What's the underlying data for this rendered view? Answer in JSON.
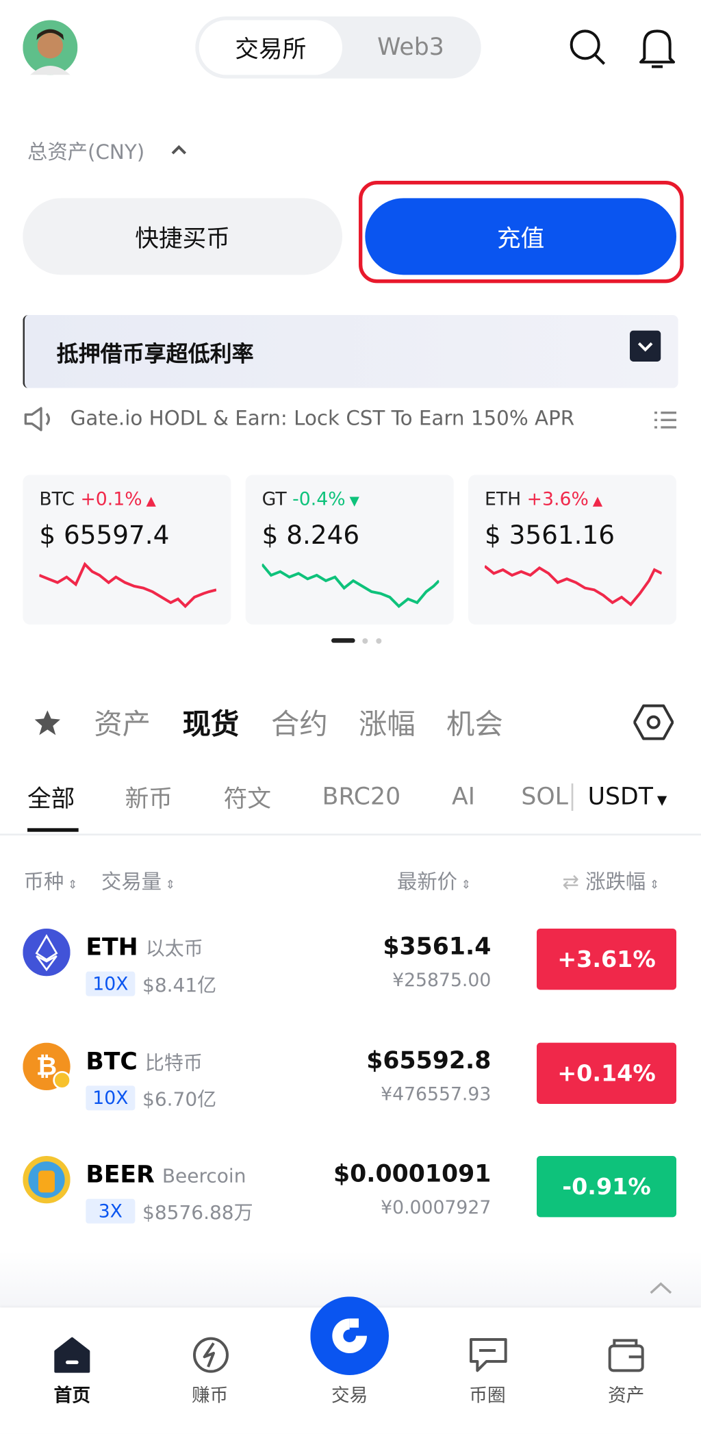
{
  "header": {
    "tabs": [
      "交易所",
      "Web3"
    ]
  },
  "total_assets_label": "总资产(CNY)",
  "buttons": {
    "quick_buy": "快捷买币",
    "deposit": "充值"
  },
  "banner": "抵押借币享超低利率",
  "announcement": "Gate.io HODL & Earn: Lock CST To Earn 150% APR",
  "tickers": [
    {
      "symbol": "BTC",
      "change": "+0.1%",
      "price": "$ 65597.4"
    },
    {
      "symbol": "GT",
      "change": "-0.4%",
      "price": "$ 8.246"
    },
    {
      "symbol": "ETH",
      "change": "+3.6%",
      "price": "$ 3561.16"
    }
  ],
  "main_tabs": [
    "资产",
    "现货",
    "合约",
    "涨幅",
    "机会"
  ],
  "sub_tabs": [
    "全部",
    "新币",
    "符文",
    "BRC20",
    "AI",
    "SOL"
  ],
  "quote": "USDT",
  "columns": [
    "币种",
    "交易量",
    "最新价",
    "涨跌幅"
  ],
  "rows": [
    {
      "symbol": "ETH",
      "name": "以太币",
      "leverage": "10X",
      "volume": "$8.41亿",
      "price": "$3561.4",
      "cny": "¥25875.00",
      "change": "+3.61%"
    },
    {
      "symbol": "BTC",
      "name": "比特币",
      "leverage": "10X",
      "volume": "$6.70亿",
      "price": "$65592.8",
      "cny": "¥476557.93",
      "change": "+0.14%"
    },
    {
      "symbol": "BEER",
      "name": "Beercoin",
      "leverage": "3X",
      "volume": "$8576.88万",
      "price": "$0.0001091",
      "cny": "¥0.0007927",
      "change": "-0.91%"
    }
  ],
  "nav": [
    "首页",
    "赚币",
    "交易",
    "币圈",
    "资产"
  ]
}
